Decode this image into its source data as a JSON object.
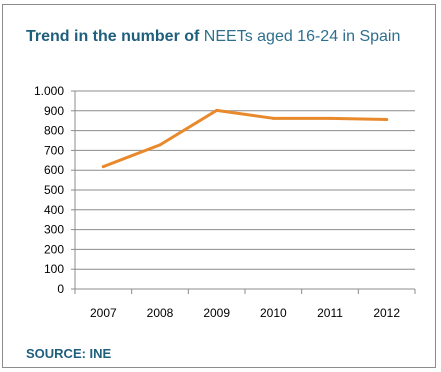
{
  "header": {
    "title_bold": "Trend in the number of",
    "title_rest": "NEETs aged 16-24 in Spain"
  },
  "footer": {
    "source": "SOURCE: INE"
  },
  "colors": {
    "line": "#e8892c",
    "grid": "#8c8c8c",
    "title": "#2e6f8e",
    "frame": "#8c8c8c"
  },
  "chart_data": {
    "type": "line",
    "title": "Trend in the number of NEETs aged 16-24 in Spain",
    "xlabel": "",
    "ylabel": "",
    "categories": [
      "2007",
      "2008",
      "2009",
      "2010",
      "2011",
      "2012"
    ],
    "series": [
      {
        "values": [
          618,
          728,
          902,
          862,
          862,
          856
        ]
      }
    ],
    "ylim": [
      0,
      1000
    ],
    "yticks": [
      0,
      100,
      200,
      300,
      400,
      500,
      600,
      700,
      800,
      900,
      1000
    ],
    "ytick_labels": [
      "0",
      "100",
      "200",
      "300",
      "400",
      "500",
      "600",
      "700",
      "800",
      "900",
      "1.000"
    ],
    "grid": true,
    "legend": "none"
  }
}
